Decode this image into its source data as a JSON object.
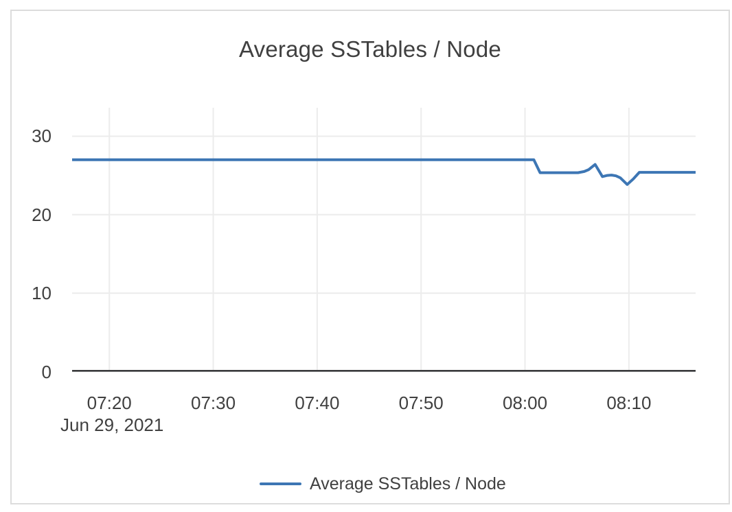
{
  "colors": {
    "line": "#3d76b4",
    "grid": "#ececec",
    "axis": "#38393b",
    "text": "#404040",
    "card_border": "#dcdcdc",
    "background": "#ffffff"
  },
  "legend": {
    "label": "Average SSTables / Node"
  },
  "chart_data": {
    "type": "line",
    "title": "Average SSTables / Node",
    "xlabel": "",
    "ylabel": "",
    "x_date_label": "Jun 29, 2021",
    "grid": true,
    "legend_position": "bottom",
    "x_domain": [
      "07:16:25",
      "08:16:25"
    ],
    "y_domain": [
      0,
      33.8
    ],
    "y_ticks": [
      {
        "label": "30",
        "value": 30
      },
      {
        "label": "20",
        "value": 20
      },
      {
        "label": "10",
        "value": 10
      },
      {
        "label": "0",
        "value": 0
      }
    ],
    "x_ticks": [
      {
        "label": "07:20",
        "time": "07:20:00"
      },
      {
        "label": "07:30",
        "time": "07:30:00"
      },
      {
        "label": "07:40",
        "time": "07:40:00"
      },
      {
        "label": "07:50",
        "time": "07:50:00"
      },
      {
        "label": "08:00",
        "time": "08:00:00"
      },
      {
        "label": "08:10",
        "time": "08:10:00"
      }
    ],
    "series": [
      {
        "name": "Average SSTables / Node",
        "color": "#3d76b4",
        "points": [
          {
            "t": "07:16:25",
            "v": 27
          },
          {
            "t": "08:00:51",
            "v": 27
          },
          {
            "t": "08:01:27",
            "v": 25.35
          },
          {
            "t": "08:05:06",
            "v": 25.35
          },
          {
            "t": "08:05:42",
            "v": 25.5
          },
          {
            "t": "08:06:08",
            "v": 25.75
          },
          {
            "t": "08:06:45",
            "v": 26.4
          },
          {
            "t": "08:07:27",
            "v": 24.85
          },
          {
            "t": "08:07:55",
            "v": 25.0
          },
          {
            "t": "08:08:20",
            "v": 25.05
          },
          {
            "t": "08:08:45",
            "v": 24.95
          },
          {
            "t": "08:09:10",
            "v": 24.7
          },
          {
            "t": "08:09:50",
            "v": 23.85
          },
          {
            "t": "08:10:25",
            "v": 24.55
          },
          {
            "t": "08:11:00",
            "v": 25.4
          },
          {
            "t": "08:16:25",
            "v": 25.4
          }
        ]
      }
    ]
  }
}
